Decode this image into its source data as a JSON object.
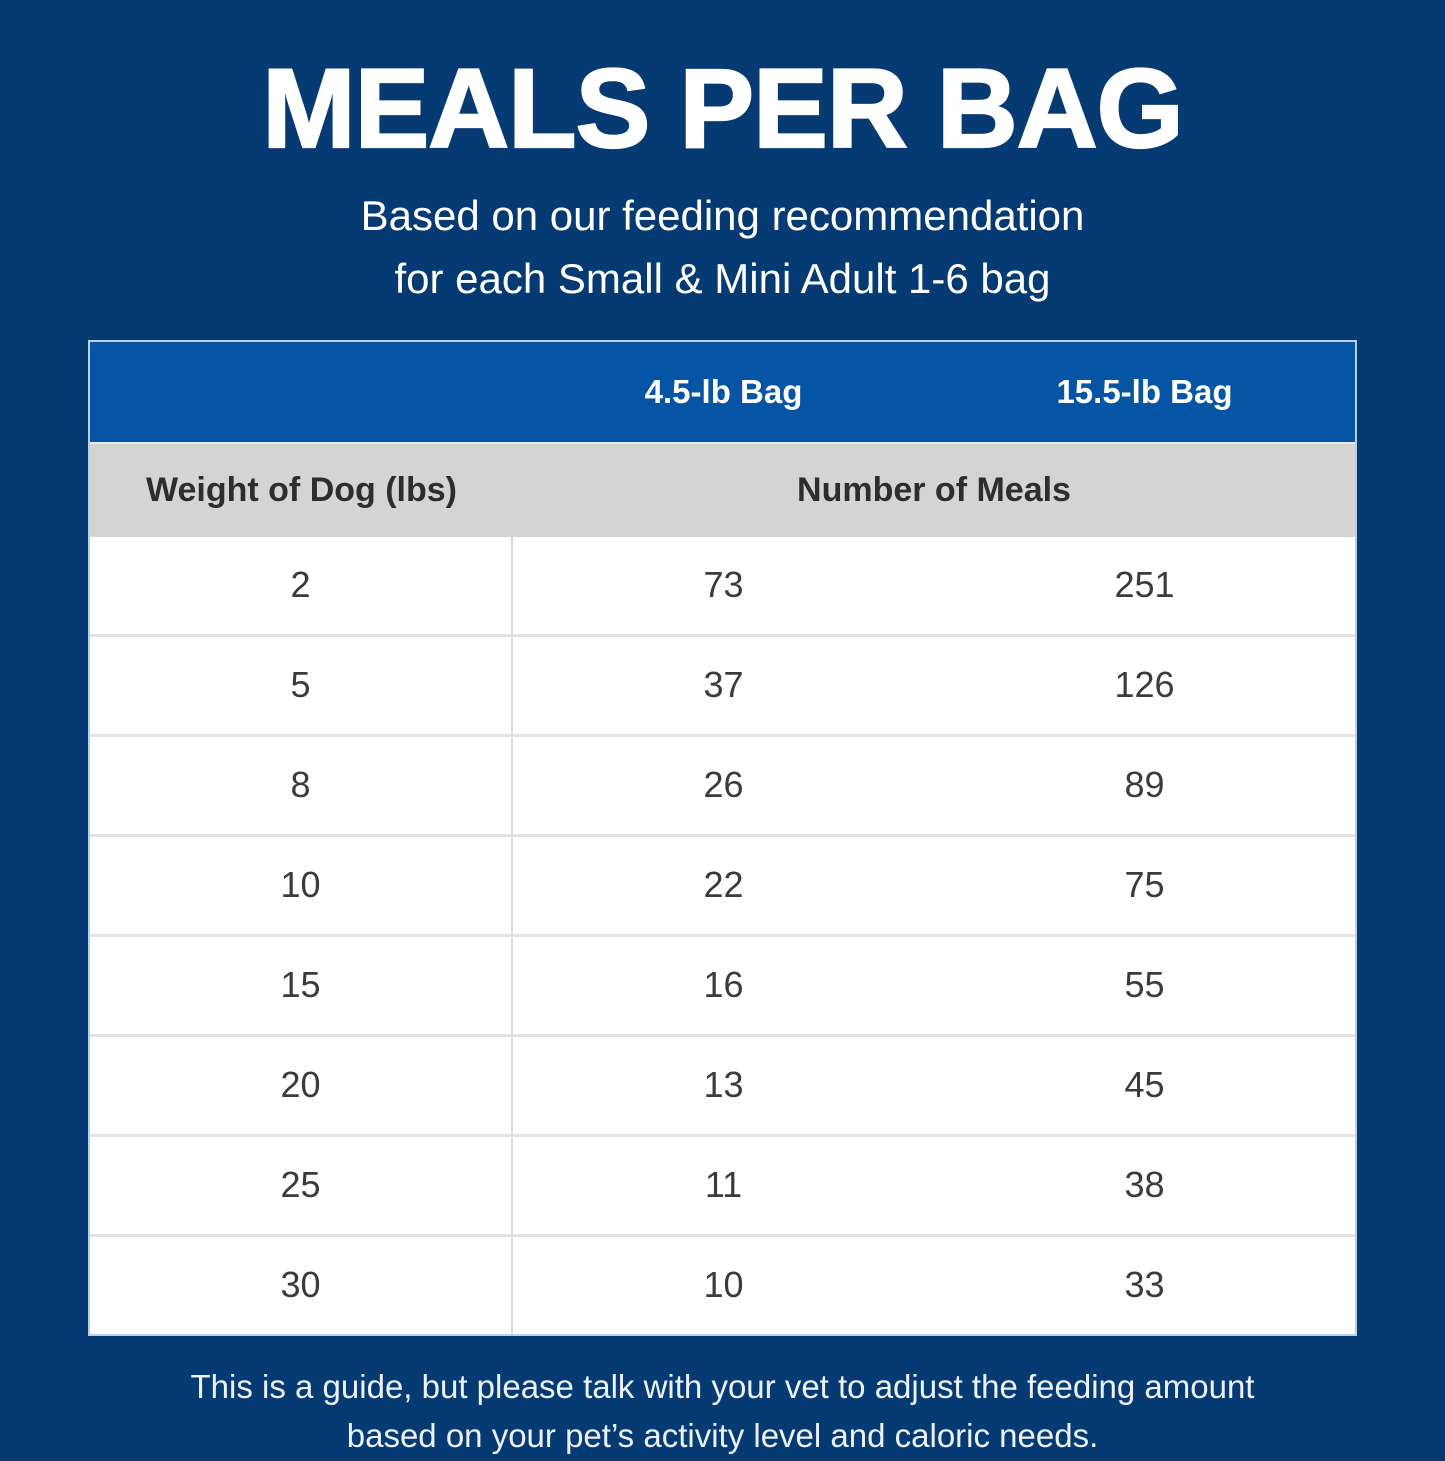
{
  "page": {
    "title": "MEALS PER BAG",
    "subtitle_line1": "Based on our feeding recommendation",
    "subtitle_line2": "for each Small & Mini Adult 1-6 bag",
    "footer_line1": "This is a guide, but please talk with your vet to adjust the feeding amount",
    "footer_line2": "based on your pet’s activity level and caloric needs."
  },
  "table": {
    "bag_column_labels": [
      "4.5-lb Bag",
      "15.5-lb Bag"
    ],
    "weight_header": "Weight of Dog (lbs)",
    "meals_header": "Number of Meals"
  },
  "chart_data": {
    "type": "table",
    "title": "MEALS PER BAG",
    "subtitle": "Based on our feeding recommendation for each Small & Mini Adult 1-6 bag",
    "columns": [
      "Weight of Dog (lbs)",
      "4.5-lb Bag — Number of Meals",
      "15.5-lb Bag — Number of Meals"
    ],
    "rows": [
      [
        "2",
        "73",
        "251"
      ],
      [
        "5",
        "37",
        "126"
      ],
      [
        "8",
        "26",
        "89"
      ],
      [
        "10",
        "22",
        "75"
      ],
      [
        "15",
        "16",
        "55"
      ],
      [
        "20",
        "13",
        "45"
      ],
      [
        "25",
        "11",
        "38"
      ],
      [
        "30",
        "10",
        "33"
      ]
    ]
  },
  "colors": {
    "page_background": "#063a73",
    "table_header_blue": "#0655a5",
    "subheader_gray": "#d4d4d4",
    "row_background": "#ffffff",
    "data_text": "#3b3b3b",
    "header_text": "#ffffff",
    "divider": "#dcdcdc",
    "table_border": "#bcd0e5"
  }
}
